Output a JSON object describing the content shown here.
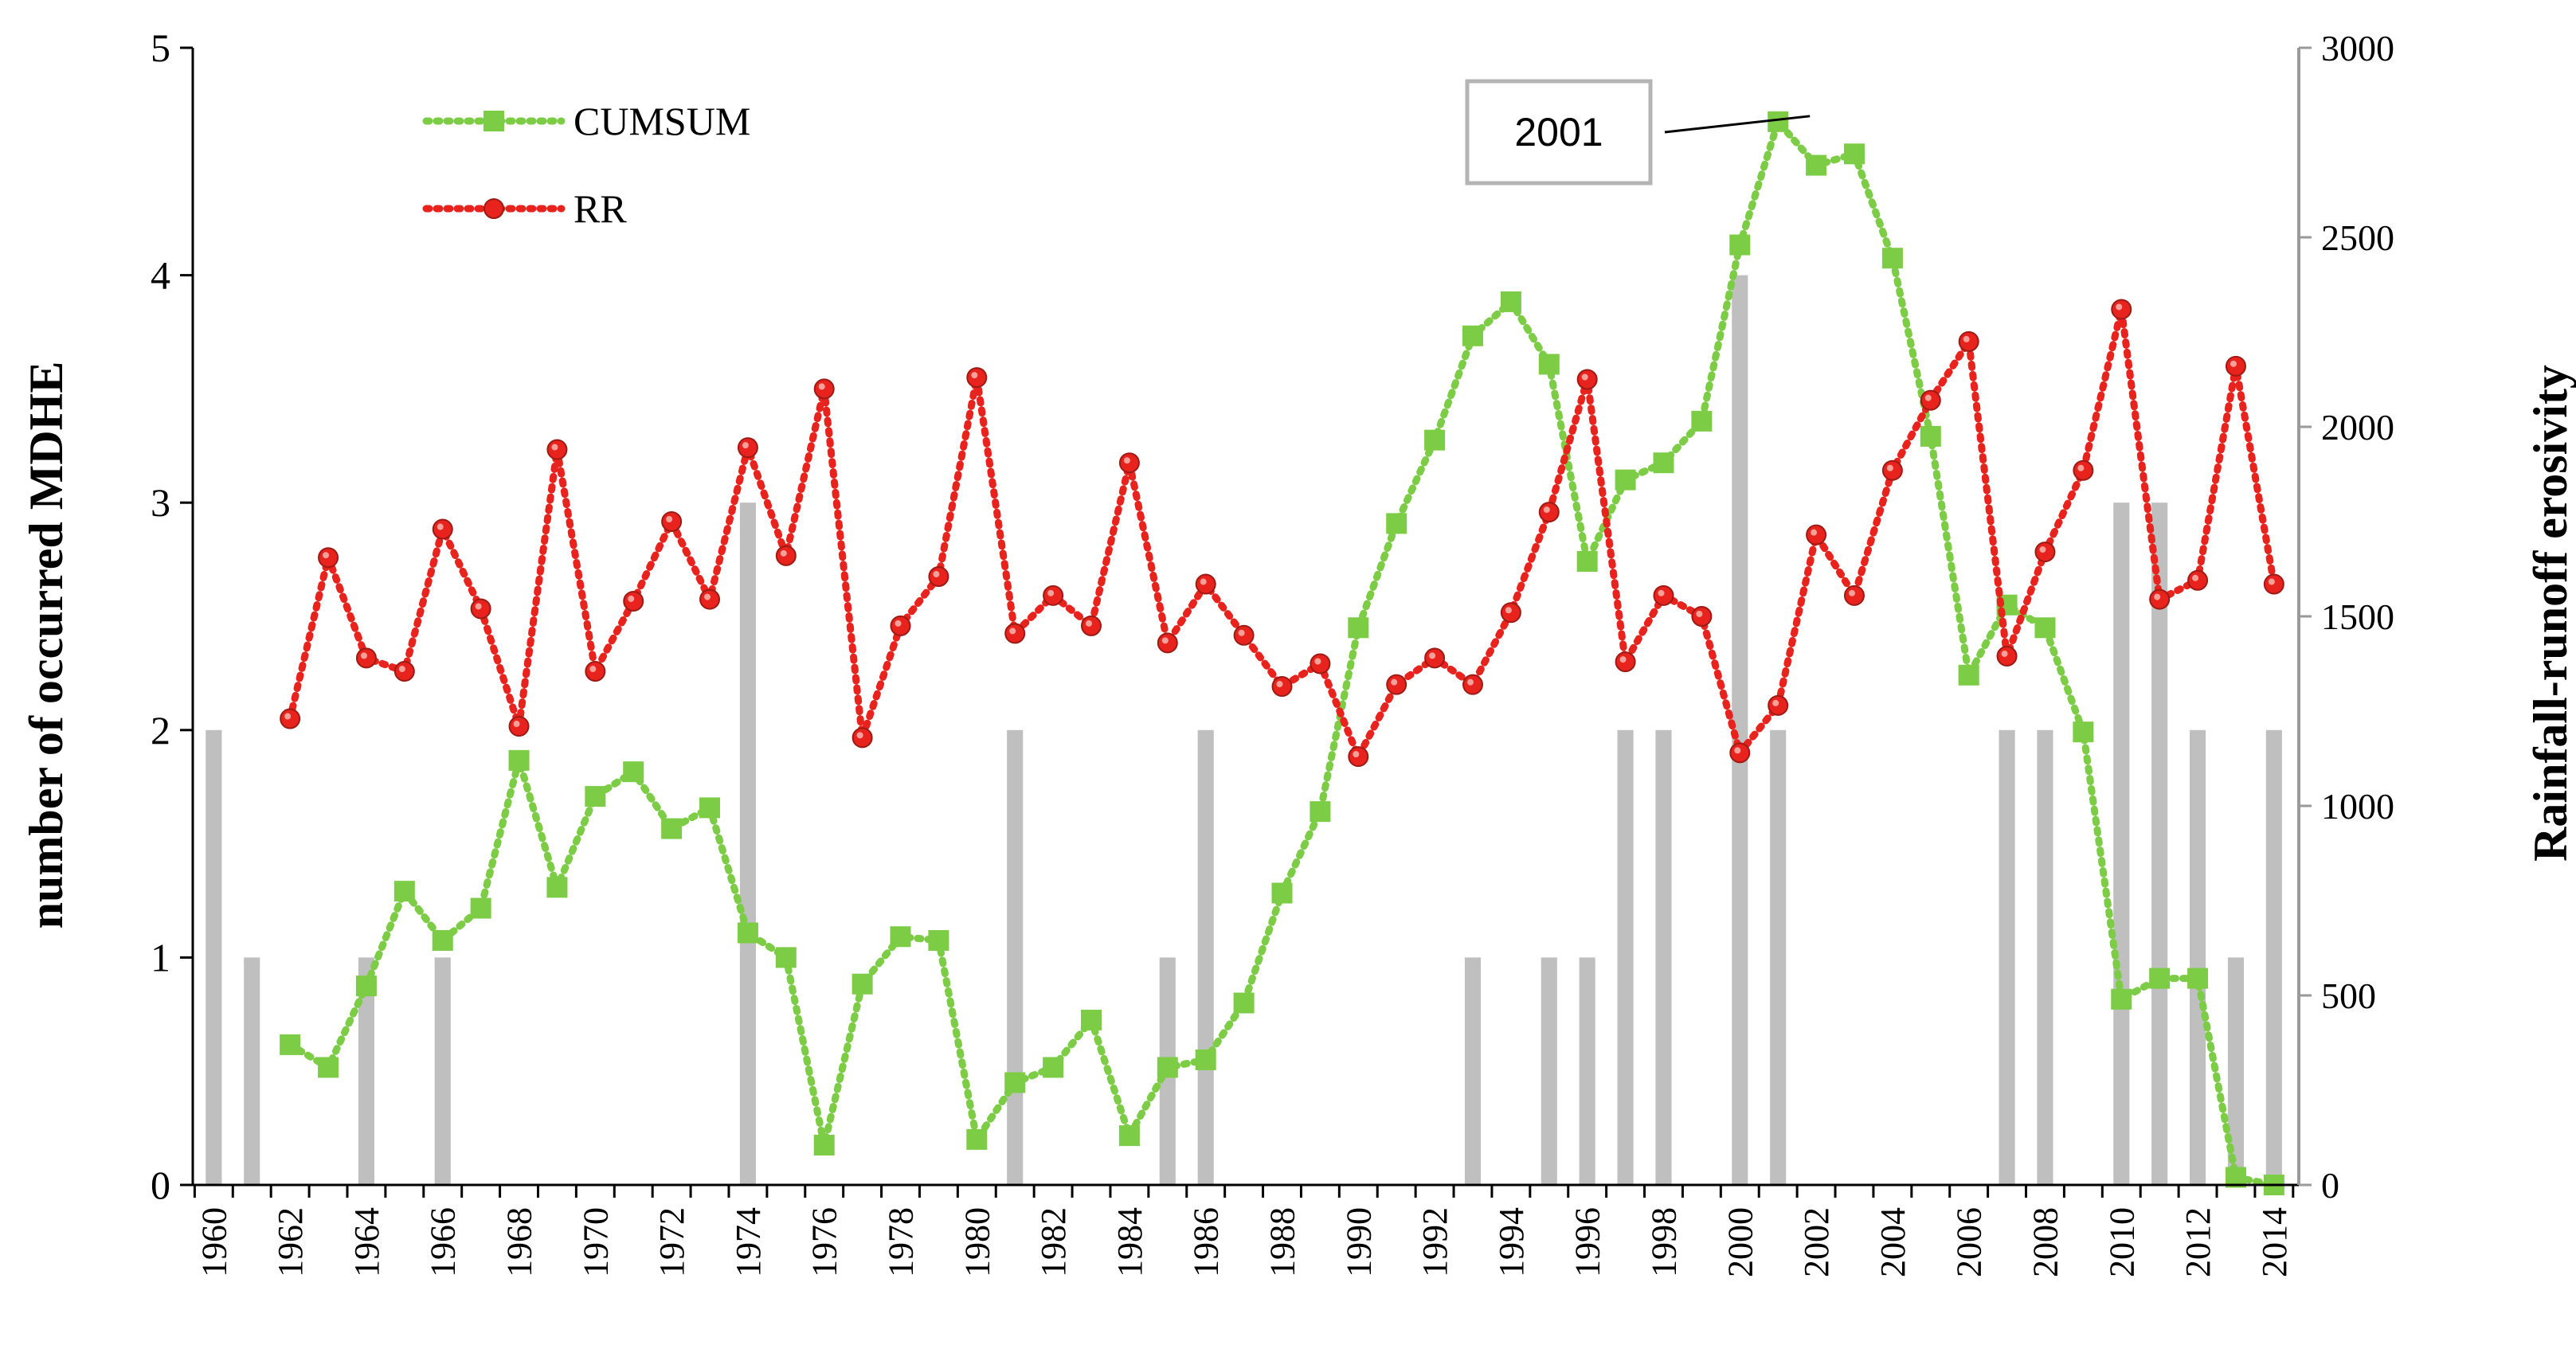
{
  "chart_data": {
    "type": "bar",
    "x": [
      1960,
      1961,
      1962,
      1963,
      1964,
      1965,
      1966,
      1967,
      1968,
      1969,
      1970,
      1971,
      1972,
      1973,
      1974,
      1975,
      1976,
      1977,
      1978,
      1979,
      1980,
      1981,
      1982,
      1983,
      1984,
      1985,
      1986,
      1987,
      1988,
      1989,
      1990,
      1991,
      1992,
      1993,
      1994,
      1995,
      1996,
      1997,
      1998,
      1999,
      2000,
      2001,
      2002,
      2003,
      2004,
      2005,
      2006,
      2007,
      2008,
      2009,
      2010,
      2011,
      2012,
      2013,
      2014
    ],
    "x_tick_labels": [
      "1960",
      "1962",
      "1964",
      "1966",
      "1968",
      "1970",
      "1972",
      "1974",
      "1976",
      "1978",
      "1980",
      "1982",
      "1984",
      "1986",
      "1988",
      "1990",
      "1992",
      "1994",
      "1996",
      "1998",
      "2000",
      "2002",
      "2004",
      "2006",
      "2008",
      "2010",
      "2012",
      "2014"
    ],
    "ylabel_left": "number of occurred MDHE",
    "ylabel_right": "Rainfall-runoff erosivity",
    "ylim_left": [
      0,
      5
    ],
    "ylim_right": [
      0,
      3000
    ],
    "y_ticks_left": [
      "0",
      "1",
      "2",
      "3",
      "4",
      "5"
    ],
    "y_ticks_right": [
      "0",
      "500",
      "1000",
      "1500",
      "2000",
      "2500",
      "3000"
    ],
    "series": [
      {
        "name": "MDHE",
        "type": "bar",
        "axis": "left",
        "color": "#bfbfbf",
        "values": [
          2,
          1,
          0,
          0,
          1,
          0,
          1,
          0,
          0,
          0,
          0,
          0,
          0,
          0,
          3,
          0,
          0,
          0,
          0,
          0,
          0,
          2,
          0,
          0,
          0,
          1,
          2,
          0,
          0,
          0,
          0,
          0,
          0,
          1,
          0,
          1,
          1,
          2,
          2,
          0,
          4,
          2,
          0,
          0,
          0,
          0,
          0,
          2,
          2,
          0,
          3,
          3,
          2,
          1,
          2
        ]
      },
      {
        "name": "CUMSUM",
        "type": "line",
        "axis": "right",
        "color": "#7ccc45",
        "marker": "square",
        "x": [
          1962,
          1963,
          1964,
          1965,
          1966,
          1967,
          1968,
          1969,
          1970,
          1971,
          1972,
          1973,
          1974,
          1975,
          1976,
          1977,
          1978,
          1979,
          1980,
          1981,
          1982,
          1983,
          1984,
          1985,
          1986,
          1987,
          1988,
          1989,
          1990,
          1991,
          1992,
          1993,
          1994,
          1995,
          1996,
          1997,
          1998,
          1999,
          2000,
          2001,
          2002,
          2003,
          2004,
          2005,
          2006,
          2007,
          2008,
          2009,
          2010,
          2011,
          2012,
          2013,
          2014
        ],
        "values": [
          370,
          310,
          525,
          775,
          645,
          730,
          1120,
          785,
          1025,
          1090,
          940,
          995,
          665,
          600,
          105,
          530,
          655,
          645,
          120,
          270,
          310,
          435,
          130,
          310,
          330,
          480,
          770,
          985,
          1470,
          1745,
          1965,
          2240,
          2330,
          2165,
          1645,
          1860,
          1905,
          2015,
          2480,
          2805,
          2690,
          2720,
          2445,
          1975,
          1345,
          1530,
          1470,
          1195,
          490,
          545,
          545,
          20,
          0
        ]
      },
      {
        "name": "RR",
        "type": "line",
        "axis": "right",
        "color": "#e8231e",
        "marker": "circle",
        "x": [
          1962,
          1963,
          1964,
          1965,
          1966,
          1967,
          1968,
          1969,
          1970,
          1971,
          1972,
          1973,
          1974,
          1975,
          1976,
          1977,
          1978,
          1979,
          1980,
          1981,
          1982,
          1983,
          1984,
          1985,
          1986,
          1987,
          1988,
          1989,
          1990,
          1991,
          1992,
          1993,
          1994,
          1995,
          1996,
          1997,
          1998,
          1999,
          2000,
          2001,
          2002,
          2003,
          2004,
          2005,
          2006,
          2007,
          2008,
          2009,
          2010,
          2011,
          2012,
          2013,
          2014
        ],
        "values": [
          1230,
          1655,
          1390,
          1355,
          1730,
          1520,
          1210,
          1940,
          1355,
          1540,
          1750,
          1545,
          1945,
          1660,
          2100,
          1180,
          1475,
          1605,
          2130,
          1455,
          1555,
          1475,
          1905,
          1430,
          1585,
          1450,
          1315,
          1375,
          1130,
          1320,
          1390,
          1320,
          1510,
          1775,
          2125,
          1380,
          1555,
          1500,
          1140,
          1265,
          1715,
          1555,
          1885,
          2070,
          2225,
          1395,
          1670,
          1885,
          2310,
          1545,
          1595,
          2160,
          1585
        ]
      }
    ],
    "callout": {
      "label": "2001",
      "target_x": 2001,
      "target_axis": "right",
      "target_value": 2805
    },
    "legend": {
      "position": "top-left",
      "entries": [
        "CUMSUM",
        "RR"
      ]
    },
    "grid": false
  }
}
